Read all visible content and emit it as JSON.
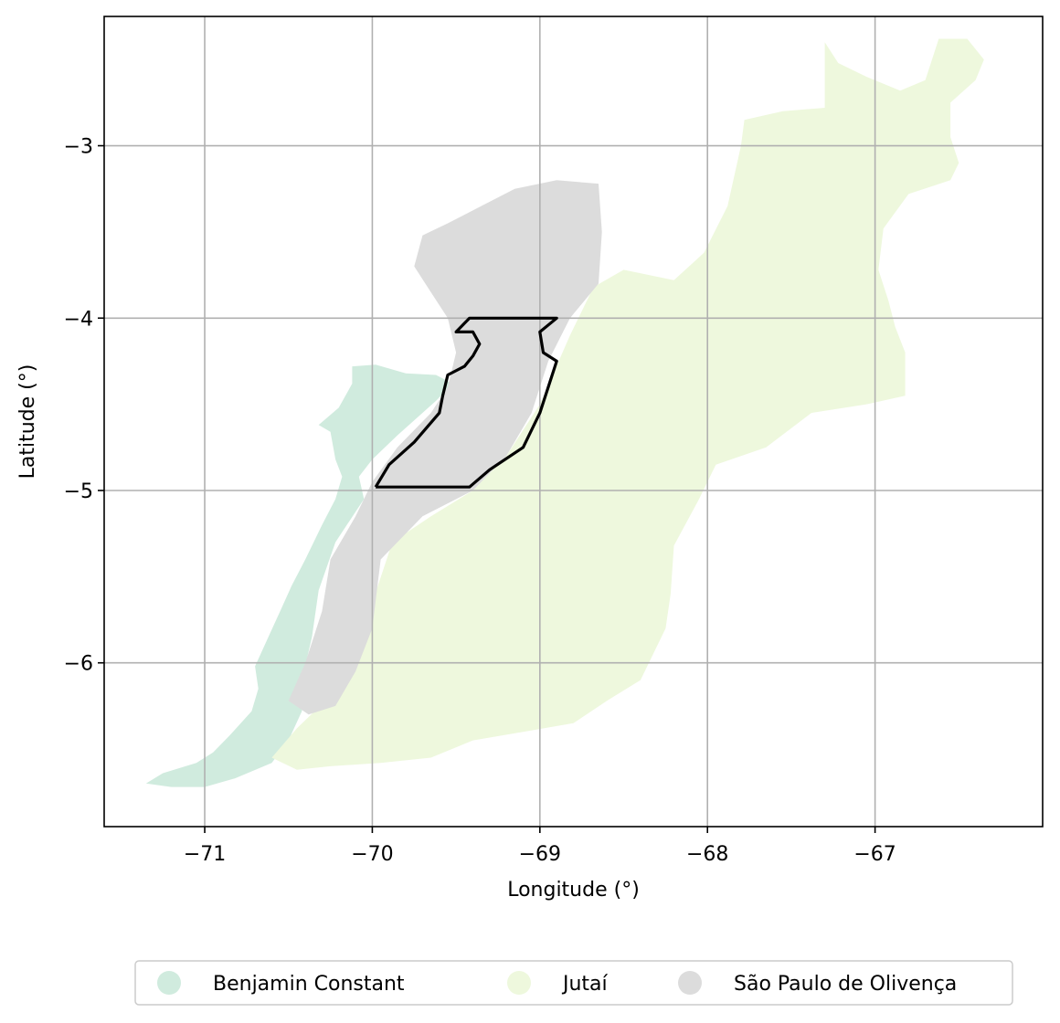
{
  "chart_data": {
    "type": "map",
    "xlabel": "Longitude (°)",
    "ylabel": "Latitude (°)",
    "xlim": [
      -71.6,
      -66.0
    ],
    "ylim": [
      -6.95,
      -2.25
    ],
    "xticks": [
      -71,
      -70,
      -69,
      -68,
      -67
    ],
    "xtick_labels": [
      "−71",
      "−70",
      "−69",
      "−68",
      "−67"
    ],
    "yticks": [
      -3,
      -4,
      -5,
      -6
    ],
    "ytick_labels": [
      "−3",
      "−4",
      "−5",
      "−6"
    ],
    "grid": true,
    "legend_position": "bottom-center",
    "regions": [
      {
        "name": "Benjamin Constant",
        "color": "#d0ebde",
        "polygon": [
          [
            -71.35,
            -6.7
          ],
          [
            -71.25,
            -6.64
          ],
          [
            -71.05,
            -6.58
          ],
          [
            -70.95,
            -6.52
          ],
          [
            -70.85,
            -6.42
          ],
          [
            -70.72,
            -6.28
          ],
          [
            -70.68,
            -6.15
          ],
          [
            -70.7,
            -6.02
          ],
          [
            -70.62,
            -5.85
          ],
          [
            -70.55,
            -5.7
          ],
          [
            -70.48,
            -5.55
          ],
          [
            -70.4,
            -5.4
          ],
          [
            -70.3,
            -5.2
          ],
          [
            -70.22,
            -5.05
          ],
          [
            -70.18,
            -4.92
          ],
          [
            -70.22,
            -4.82
          ],
          [
            -70.25,
            -4.66
          ],
          [
            -70.32,
            -4.62
          ],
          [
            -70.2,
            -4.52
          ],
          [
            -70.12,
            -4.38
          ],
          [
            -70.12,
            -4.28
          ],
          [
            -69.98,
            -4.27
          ],
          [
            -69.8,
            -4.32
          ],
          [
            -69.62,
            -4.33
          ],
          [
            -69.52,
            -4.38
          ],
          [
            -69.62,
            -4.48
          ],
          [
            -69.85,
            -4.68
          ],
          [
            -70.0,
            -4.82
          ],
          [
            -70.08,
            -4.92
          ],
          [
            -70.05,
            -5.05
          ],
          [
            -70.22,
            -5.3
          ],
          [
            -70.32,
            -5.58
          ],
          [
            -70.36,
            -5.85
          ],
          [
            -70.42,
            -6.1
          ],
          [
            -70.42,
            -6.28
          ],
          [
            -70.5,
            -6.45
          ],
          [
            -70.6,
            -6.58
          ],
          [
            -70.82,
            -6.67
          ],
          [
            -71.0,
            -6.72
          ],
          [
            -71.2,
            -6.72
          ]
        ]
      },
      {
        "name": "Jutaí",
        "color": "#eef8dd",
        "polygon": [
          [
            -70.6,
            -6.55
          ],
          [
            -70.45,
            -6.38
          ],
          [
            -70.28,
            -6.22
          ],
          [
            -70.1,
            -5.95
          ],
          [
            -70.0,
            -5.65
          ],
          [
            -69.88,
            -5.3
          ],
          [
            -69.65,
            -5.15
          ],
          [
            -69.4,
            -5.0
          ],
          [
            -69.2,
            -4.8
          ],
          [
            -69.0,
            -4.5
          ],
          [
            -68.82,
            -4.1
          ],
          [
            -68.68,
            -3.82
          ],
          [
            -68.5,
            -3.72
          ],
          [
            -68.2,
            -3.78
          ],
          [
            -68.02,
            -3.62
          ],
          [
            -67.88,
            -3.35
          ],
          [
            -67.8,
            -3.0
          ],
          [
            -67.78,
            -2.85
          ],
          [
            -67.55,
            -2.8
          ],
          [
            -67.3,
            -2.78
          ],
          [
            -67.3,
            -2.4
          ],
          [
            -67.22,
            -2.52
          ],
          [
            -67.05,
            -2.6
          ],
          [
            -66.85,
            -2.68
          ],
          [
            -66.7,
            -2.62
          ],
          [
            -66.62,
            -2.38
          ],
          [
            -66.45,
            -2.38
          ],
          [
            -66.35,
            -2.5
          ],
          [
            -66.4,
            -2.62
          ],
          [
            -66.55,
            -2.75
          ],
          [
            -66.55,
            -2.95
          ],
          [
            -66.5,
            -3.1
          ],
          [
            -66.55,
            -3.2
          ],
          [
            -66.8,
            -3.28
          ],
          [
            -66.95,
            -3.48
          ],
          [
            -66.98,
            -3.72
          ],
          [
            -66.92,
            -3.9
          ],
          [
            -66.88,
            -4.05
          ],
          [
            -66.82,
            -4.2
          ],
          [
            -66.82,
            -4.45
          ],
          [
            -67.05,
            -4.5
          ],
          [
            -67.38,
            -4.55
          ],
          [
            -67.65,
            -4.75
          ],
          [
            -67.95,
            -4.85
          ],
          [
            -68.05,
            -5.05
          ],
          [
            -68.2,
            -5.32
          ],
          [
            -68.22,
            -5.6
          ],
          [
            -68.25,
            -5.8
          ],
          [
            -68.4,
            -6.1
          ],
          [
            -68.6,
            -6.22
          ],
          [
            -68.8,
            -6.35
          ],
          [
            -69.1,
            -6.4
          ],
          [
            -69.4,
            -6.45
          ],
          [
            -69.65,
            -6.55
          ],
          [
            -69.95,
            -6.58
          ],
          [
            -70.25,
            -6.6
          ],
          [
            -70.45,
            -6.62
          ]
        ]
      },
      {
        "name": "São Paulo de Olivença",
        "color": "#dcdcdc",
        "polygon": [
          [
            -70.5,
            -6.22
          ],
          [
            -70.4,
            -6.0
          ],
          [
            -70.3,
            -5.7
          ],
          [
            -70.25,
            -5.4
          ],
          [
            -70.1,
            -5.15
          ],
          [
            -70.0,
            -4.95
          ],
          [
            -69.85,
            -4.75
          ],
          [
            -69.65,
            -4.55
          ],
          [
            -69.55,
            -4.4
          ],
          [
            -69.5,
            -4.2
          ],
          [
            -69.55,
            -4.0
          ],
          [
            -69.65,
            -3.85
          ],
          [
            -69.75,
            -3.7
          ],
          [
            -69.7,
            -3.52
          ],
          [
            -69.55,
            -3.45
          ],
          [
            -69.35,
            -3.35
          ],
          [
            -69.15,
            -3.25
          ],
          [
            -68.9,
            -3.2
          ],
          [
            -68.65,
            -3.22
          ],
          [
            -68.63,
            -3.5
          ],
          [
            -68.65,
            -3.8
          ],
          [
            -68.82,
            -4.0
          ],
          [
            -68.95,
            -4.25
          ],
          [
            -69.05,
            -4.55
          ],
          [
            -69.2,
            -4.8
          ],
          [
            -69.4,
            -5.0
          ],
          [
            -69.7,
            -5.15
          ],
          [
            -69.95,
            -5.4
          ],
          [
            -70.0,
            -5.8
          ],
          [
            -70.1,
            -6.05
          ],
          [
            -70.22,
            -6.25
          ],
          [
            -70.38,
            -6.3
          ]
        ]
      }
    ],
    "highlight_outline": {
      "color": "#000000",
      "polyline": [
        [
          -69.98,
          -4.98
        ],
        [
          -69.9,
          -4.85
        ],
        [
          -69.75,
          -4.72
        ],
        [
          -69.6,
          -4.55
        ],
        [
          -69.58,
          -4.45
        ],
        [
          -69.55,
          -4.33
        ],
        [
          -69.45,
          -4.28
        ],
        [
          -69.4,
          -4.22
        ],
        [
          -69.36,
          -4.15
        ],
        [
          -69.4,
          -4.08
        ],
        [
          -69.5,
          -4.08
        ],
        [
          -69.42,
          -4.0
        ],
        [
          -68.9,
          -4.0
        ],
        [
          -69.0,
          -4.08
        ],
        [
          -68.98,
          -4.2
        ],
        [
          -68.9,
          -4.25
        ],
        [
          -68.95,
          -4.4
        ],
        [
          -69.0,
          -4.55
        ],
        [
          -69.1,
          -4.75
        ],
        [
          -69.3,
          -4.88
        ],
        [
          -69.42,
          -4.98
        ],
        [
          -69.98,
          -4.98
        ]
      ]
    },
    "legend": [
      {
        "label": "Benjamin Constant",
        "color": "#d0ebde"
      },
      {
        "label": "Jutaí",
        "color": "#eef8dd"
      },
      {
        "label": "São Paulo de Olivença",
        "color": "#dcdcdc"
      }
    ]
  }
}
